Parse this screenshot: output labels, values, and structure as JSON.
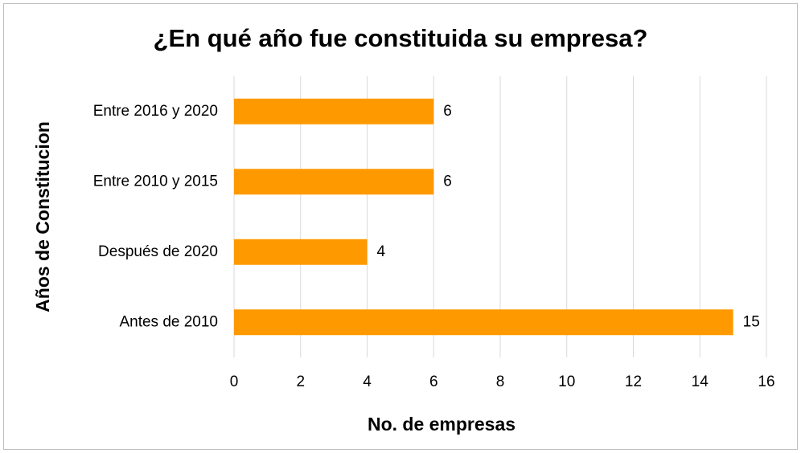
{
  "chart_data": {
    "type": "bar",
    "orientation": "horizontal",
    "title": "¿En qué año fue constituida su empresa?",
    "x_label": "No. de empresas",
    "y_label": "Años de Constitucion",
    "categories": [
      "Antes de 2010",
      "Después de 2020",
      "Entre 2010 y 2015",
      "Entre 2016 y 2020"
    ],
    "values": [
      15,
      4,
      6,
      6
    ],
    "color": "#ff9900",
    "xlim": [
      0,
      16
    ],
    "xticks": [
      0,
      2,
      4,
      6,
      8,
      10,
      12,
      14,
      16
    ],
    "grid": true
  }
}
